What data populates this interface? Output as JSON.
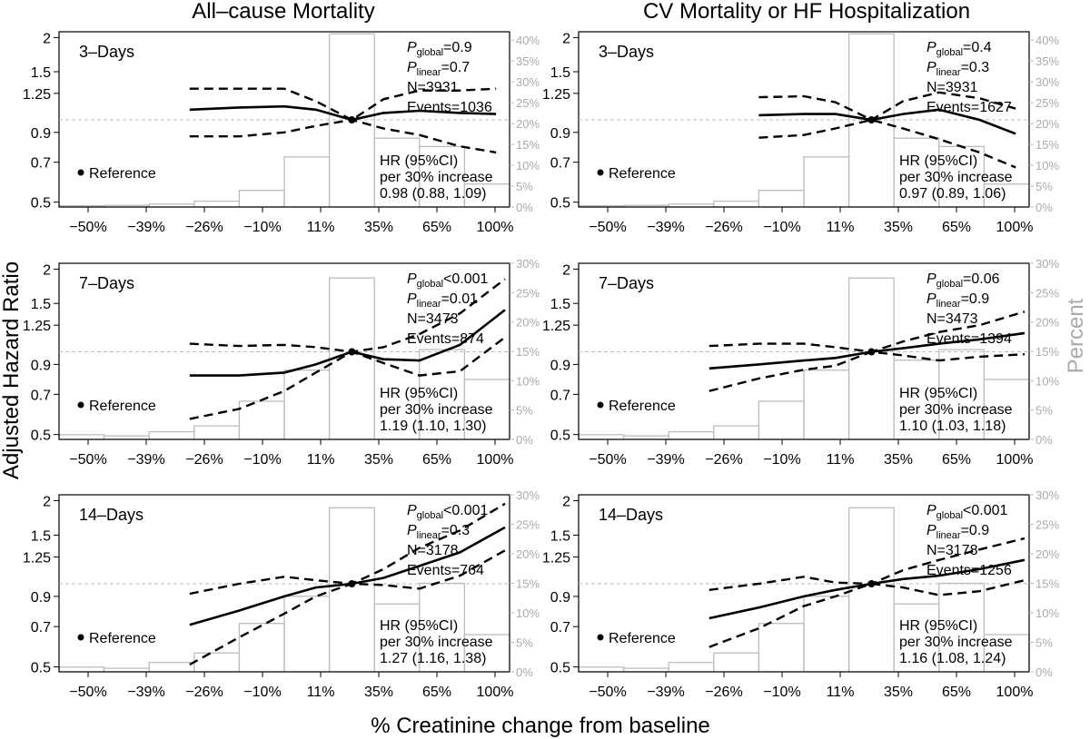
{
  "figure": {
    "column_titles": [
      "All–cause Mortality",
      "CV Mortality or HF Hospitalization"
    ],
    "y_label": "Adjusted Hazard Ratio",
    "y2_label": "Percent",
    "x_label": "% Creatinine change from baseline"
  },
  "chart_data": [
    {
      "type": "line",
      "panel": "all-cause-3d",
      "title": "3–Days",
      "stats": {
        "p_global": "=0.9",
        "p_linear": "=0.7",
        "n": "N=3931",
        "events": "Events=1036"
      },
      "hr_text": [
        "HR (95%CI)",
        "per 30% increase",
        "0.98 (0.88, 1.09)"
      ],
      "reference_label": "Reference",
      "x_ticks": [
        "−50%",
        "−39%",
        "−26%",
        "−10%",
        "11%",
        "35%",
        "65%",
        "100%"
      ],
      "y_ticks": [
        "0.5",
        "0.7",
        "0.9",
        "1.25",
        "1.5",
        "2"
      ],
      "y2_ticks": [
        "0%",
        "5%",
        "10%",
        "15%",
        "20%",
        "25%",
        "30%",
        "35%",
        "40%"
      ],
      "y_scale": "log",
      "ylim": [
        0.48,
        2.1
      ],
      "y2lim": [
        0,
        42
      ],
      "x_index_range": [
        -0.5,
        9.5
      ],
      "histogram_pct": [
        0.3,
        0.4,
        0.7,
        1.4,
        4.0,
        12.0,
        41.5,
        16.5,
        14.5,
        5.5,
        0
      ],
      "curve": {
        "x": [
          2.4,
          3.5,
          4.5,
          5.2,
          6.0,
          6.7,
          7.5,
          8.4,
          9.2
        ],
        "hr": [
          1.09,
          1.11,
          1.12,
          1.09,
          1.0,
          1.06,
          1.08,
          1.06,
          1.05
        ],
        "lo": [
          0.87,
          0.87,
          0.9,
          0.95,
          1.0,
          0.93,
          0.88,
          0.8,
          0.76
        ],
        "hi": [
          1.3,
          1.3,
          1.3,
          1.17,
          1.0,
          1.19,
          1.28,
          1.28,
          1.3
        ]
      },
      "ref_line": 1.0
    },
    {
      "type": "line",
      "panel": "cv-3d",
      "title": "3–Days",
      "stats": {
        "p_global": "=0.4",
        "p_linear": "=0.3",
        "n": "N=3931",
        "events": "Events=1627"
      },
      "hr_text": [
        "HR (95%CI)",
        "per 30% increase",
        "0.97 (0.89, 1.06)"
      ],
      "reference_label": "Reference",
      "x_ticks": [
        "−50%",
        "−39%",
        "−26%",
        "−10%",
        "11%",
        "35%",
        "65%",
        "100%"
      ],
      "y_ticks": [
        "0.5",
        "0.7",
        "0.9",
        "1.25",
        "1.5",
        "2"
      ],
      "y2_ticks": [
        "0%",
        "5%",
        "10%",
        "15%",
        "20%",
        "25%",
        "30%",
        "35%",
        "40%"
      ],
      "y_scale": "log",
      "ylim": [
        0.48,
        2.1
      ],
      "y2lim": [
        0,
        42
      ],
      "x_index_range": [
        -0.5,
        9.5
      ],
      "histogram_pct": [
        0.3,
        0.4,
        0.7,
        1.4,
        4.0,
        12.0,
        41.5,
        16.5,
        14.5,
        5.5,
        0
      ],
      "curve": {
        "x": [
          3.5,
          4.5,
          5.2,
          6.0,
          6.7,
          7.5,
          8.4,
          9.2
        ],
        "hr": [
          1.04,
          1.05,
          1.05,
          1.0,
          1.05,
          1.09,
          1.0,
          0.89
        ],
        "lo": [
          0.86,
          0.88,
          0.93,
          1.0,
          0.93,
          0.85,
          0.76,
          0.67
        ],
        "hi": [
          1.21,
          1.22,
          1.16,
          1.0,
          1.17,
          1.26,
          1.2,
          1.1
        ]
      },
      "ref_line": 1.0
    },
    {
      "type": "line",
      "panel": "all-cause-7d",
      "title": "7–Days",
      "stats": {
        "p_global": "<0.001",
        "p_linear": "=0.01",
        "n": "N=3473",
        "events": "Events=874"
      },
      "hr_text": [
        "HR (95%CI)",
        "per 30% increase",
        "1.19 (1.10, 1.30)"
      ],
      "reference_label": "Reference",
      "x_ticks": [
        "−50%",
        "−39%",
        "−26%",
        "−10%",
        "11%",
        "35%",
        "65%",
        "100%"
      ],
      "y_ticks": [
        "0.5",
        "0.7",
        "0.9",
        "1.25",
        "1.5",
        "2"
      ],
      "y2_ticks": [
        "0%",
        "5%",
        "10%",
        "15%",
        "20%",
        "25%",
        "30%"
      ],
      "y_scale": "log",
      "ylim": [
        0.48,
        2.1
      ],
      "y2lim": [
        0,
        30
      ],
      "x_index_range": [
        -0.5,
        9.5
      ],
      "histogram_pct": [
        0.8,
        0.6,
        1.3,
        2.3,
        6.5,
        11.8,
        27.5,
        13.5,
        15.3,
        10.2,
        0
      ],
      "curve": {
        "x": [
          2.4,
          3.5,
          4.5,
          5.2,
          6.0,
          6.7,
          7.5,
          8.4,
          9.4
        ],
        "hr": [
          0.82,
          0.82,
          0.84,
          0.9,
          1.0,
          0.94,
          0.93,
          1.06,
          1.42
        ],
        "lo": [
          0.57,
          0.62,
          0.72,
          0.84,
          1.0,
          0.91,
          0.82,
          0.85,
          1.13
        ],
        "hi": [
          1.07,
          1.05,
          1.06,
          1.04,
          1.0,
          1.04,
          1.16,
          1.38,
          1.84
        ]
      },
      "ref_line": 1.0
    },
    {
      "type": "line",
      "panel": "cv-7d",
      "title": "7–Days",
      "stats": {
        "p_global": "=0.06",
        "p_linear": "=0.9",
        "n": "N=3473",
        "events": "Events=1394"
      },
      "hr_text": [
        "HR (95%CI)",
        "per 30% increase",
        "1.10 (1.03, 1.18)"
      ],
      "reference_label": "Reference",
      "x_ticks": [
        "−50%",
        "−39%",
        "−26%",
        "−10%",
        "11%",
        "35%",
        "65%",
        "100%"
      ],
      "y_ticks": [
        "0.5",
        "0.7",
        "0.9",
        "1.25",
        "1.5",
        "2"
      ],
      "y2_ticks": [
        "0%",
        "5%",
        "10%",
        "15%",
        "20%",
        "25%",
        "30%"
      ],
      "y_scale": "log",
      "ylim": [
        0.48,
        2.1
      ],
      "y2lim": [
        0,
        30
      ],
      "x_index_range": [
        -0.5,
        9.5
      ],
      "histogram_pct": [
        0.8,
        0.6,
        1.3,
        2.3,
        6.5,
        11.8,
        27.5,
        13.5,
        15.3,
        10.2,
        0
      ],
      "curve": {
        "x": [
          2.4,
          3.5,
          4.5,
          5.2,
          6.0,
          6.7,
          7.5,
          8.4,
          9.4
        ],
        "hr": [
          0.87,
          0.9,
          0.93,
          0.95,
          1.0,
          1.03,
          1.07,
          1.11,
          1.17
        ],
        "lo": [
          0.72,
          0.8,
          0.86,
          0.89,
          1.0,
          0.97,
          0.93,
          0.96,
          0.98
        ],
        "hi": [
          1.05,
          1.07,
          1.07,
          1.04,
          1.0,
          1.09,
          1.18,
          1.25,
          1.4
        ]
      },
      "ref_line": 1.0
    },
    {
      "type": "line",
      "panel": "all-cause-14d",
      "title": "14–Days",
      "stats": {
        "p_global": "<0.001",
        "p_linear": "=0.3",
        "n": "N=3178",
        "events": "Events=764"
      },
      "hr_text": [
        "HR (95%CI)",
        "per 30% increase",
        "1.27 (1.16, 1.38)"
      ],
      "reference_label": "Reference",
      "x_ticks": [
        "−50%",
        "−39%",
        "−26%",
        "−10%",
        "11%",
        "35%",
        "65%",
        "100%"
      ],
      "y_ticks": [
        "0.5",
        "0.7",
        "0.9",
        "1.25",
        "1.5",
        "2"
      ],
      "y2_ticks": [
        "0%",
        "5%",
        "10%",
        "15%",
        "20%",
        "25%",
        "30%"
      ],
      "y_scale": "log",
      "ylim": [
        0.48,
        2.1
      ],
      "y2lim": [
        0,
        30
      ],
      "x_index_range": [
        -0.5,
        9.5
      ],
      "histogram_pct": [
        0.8,
        0.6,
        1.6,
        3.2,
        8.2,
        12.8,
        27.8,
        11.5,
        15.0,
        6.3,
        0
      ],
      "curve": {
        "x": [
          2.4,
          3.5,
          4.5,
          5.2,
          6.0,
          6.7,
          7.5,
          8.4,
          9.4
        ],
        "hr": [
          0.71,
          0.8,
          0.9,
          0.97,
          1.0,
          1.05,
          1.16,
          1.3,
          1.6
        ],
        "lo": [
          0.51,
          0.64,
          0.78,
          0.9,
          1.0,
          0.99,
          0.96,
          1.07,
          1.32
        ],
        "hi": [
          0.92,
          1.0,
          1.06,
          1.03,
          1.0,
          1.13,
          1.35,
          1.56,
          1.95
        ]
      },
      "ref_line": 1.0
    },
    {
      "type": "line",
      "panel": "cv-14d",
      "title": "14–Days",
      "stats": {
        "p_global": "<0.001",
        "p_linear": "=0.9",
        "n": "N=3178",
        "events": "Events=1256"
      },
      "hr_text": [
        "HR (95%CI)",
        "per 30% increase",
        "1.16 (1.08, 1.24)"
      ],
      "reference_label": "Reference",
      "x_ticks": [
        "−50%",
        "−39%",
        "−26%",
        "−10%",
        "11%",
        "35%",
        "65%",
        "100%"
      ],
      "y_ticks": [
        "0.5",
        "0.7",
        "0.9",
        "1.25",
        "1.5",
        "2"
      ],
      "y2_ticks": [
        "0%",
        "5%",
        "10%",
        "15%",
        "20%",
        "25%",
        "30%"
      ],
      "y_scale": "log",
      "ylim": [
        0.48,
        2.1
      ],
      "y2lim": [
        0,
        30
      ],
      "x_index_range": [
        -0.5,
        9.5
      ],
      "histogram_pct": [
        0.8,
        0.6,
        1.6,
        3.2,
        8.2,
        12.8,
        27.8,
        11.5,
        15.0,
        6.3,
        0
      ],
      "curve": {
        "x": [
          2.4,
          3.5,
          4.5,
          5.2,
          6.0,
          6.7,
          7.5,
          8.4,
          9.4
        ],
        "hr": [
          0.75,
          0.82,
          0.9,
          0.95,
          1.0,
          1.04,
          1.07,
          1.13,
          1.22
        ],
        "lo": [
          0.59,
          0.69,
          0.83,
          0.9,
          1.0,
          0.97,
          0.91,
          0.94,
          1.03
        ],
        "hi": [
          0.95,
          1.0,
          1.06,
          1.01,
          1.0,
          1.12,
          1.22,
          1.33,
          1.46
        ]
      },
      "ref_line": 1.0
    }
  ]
}
